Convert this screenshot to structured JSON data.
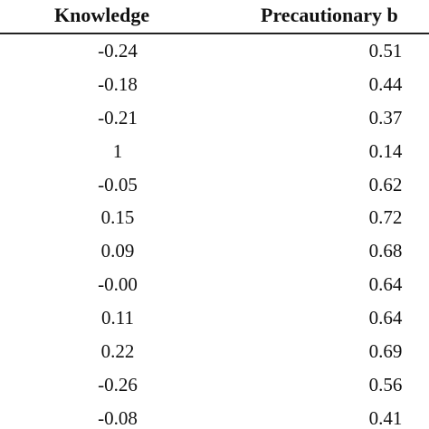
{
  "table": {
    "headers": {
      "knowledge": "Knowledge",
      "precautionary": "Precautionary b"
    },
    "rows": [
      {
        "knowledge": "-0.24",
        "precautionary": "0.51"
      },
      {
        "knowledge": "-0.18",
        "precautionary": "0.44"
      },
      {
        "knowledge": "-0.21",
        "precautionary": "0.37"
      },
      {
        "knowledge": "1",
        "precautionary": "0.14"
      },
      {
        "knowledge": "-0.05",
        "precautionary": "0.62"
      },
      {
        "knowledge": "0.15",
        "precautionary": "0.72"
      },
      {
        "knowledge": "0.09",
        "precautionary": "0.68"
      },
      {
        "knowledge": "-0.00",
        "precautionary": "0.64"
      },
      {
        "knowledge": "0.11",
        "precautionary": "0.64"
      },
      {
        "knowledge": "0.22",
        "precautionary": "0.69"
      },
      {
        "knowledge": "-0.26",
        "precautionary": "0.56"
      },
      {
        "knowledge": "-0.08",
        "precautionary": "0.41"
      }
    ]
  }
}
